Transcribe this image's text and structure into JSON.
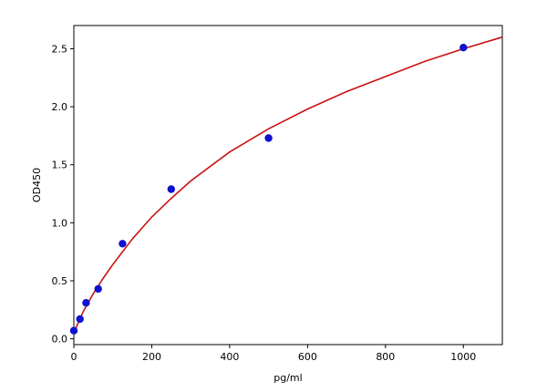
{
  "chart_data": {
    "type": "scatter",
    "xlabel": "pg/ml",
    "ylabel": "OD450",
    "xlim": [
      0,
      1100
    ],
    "ylim": [
      -0.05,
      2.7
    ],
    "xticks": [
      0,
      200,
      400,
      600,
      800,
      1000
    ],
    "yticks": [
      0.0,
      0.5,
      1.0,
      1.5,
      2.0,
      2.5
    ],
    "xtick_labels": [
      "0",
      "200",
      "400",
      "600",
      "800",
      "1000"
    ],
    "ytick_labels": [
      "0.0",
      "0.5",
      "1.0",
      "1.5",
      "2.0",
      "2.5"
    ],
    "grid": false,
    "points": {
      "x": [
        0,
        15.6,
        31.25,
        62.5,
        125,
        250,
        500,
        1000
      ],
      "y": [
        0.07,
        0.17,
        0.31,
        0.43,
        0.82,
        1.29,
        1.73,
        2.51
      ],
      "color": "#1010d0"
    },
    "fit_curve": {
      "x": [
        0,
        10,
        25,
        50,
        75,
        100,
        150,
        200,
        250,
        300,
        400,
        500,
        600,
        700,
        800,
        900,
        1000,
        1100
      ],
      "y": [
        0.05,
        0.13,
        0.24,
        0.39,
        0.52,
        0.64,
        0.86,
        1.05,
        1.21,
        1.36,
        1.61,
        1.81,
        1.98,
        2.13,
        2.26,
        2.39,
        2.5,
        2.6
      ],
      "color": "#cc1111"
    }
  }
}
